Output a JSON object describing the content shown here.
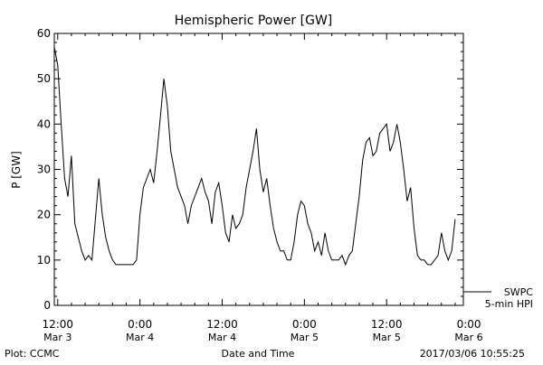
{
  "chart_data": {
    "type": "line",
    "title": "Hemispheric Power [GW]",
    "ylabel": "P [GW]",
    "xlabel": "Date and Time",
    "ylim": [
      0,
      60
    ],
    "y_ticks": [
      "0",
      "10",
      "20",
      "30",
      "40",
      "50",
      "60"
    ],
    "x_ticks": [
      {
        "time": "12:00",
        "date": "Mar 3"
      },
      {
        "time": "0:00",
        "date": "Mar 4"
      },
      {
        "time": "12:00",
        "date": "Mar 4"
      },
      {
        "time": "0:00",
        "date": "Mar 5"
      },
      {
        "time": "12:00",
        "date": "Mar 5"
      },
      {
        "time": "0:00",
        "date": "Mar 6"
      }
    ],
    "xlim_hours_from_first_tick": [
      -0.5,
      59.2
    ],
    "legend": {
      "label_1": "SWPC",
      "label_2": "5-min HPI",
      "placement": "right, outside"
    },
    "series": [
      {
        "points": [
          [
            -0.5,
            57
          ],
          [
            0,
            53
          ],
          [
            0.5,
            40
          ],
          [
            1,
            28
          ],
          [
            1.5,
            24
          ],
          [
            2,
            33
          ],
          [
            2.5,
            18
          ],
          [
            3,
            15
          ],
          [
            3.5,
            12
          ],
          [
            4,
            10
          ],
          [
            4.5,
            11
          ],
          [
            5,
            10
          ],
          [
            5.5,
            19
          ],
          [
            6,
            28
          ],
          [
            6.5,
            20
          ],
          [
            7,
            15
          ],
          [
            7.5,
            12
          ],
          [
            8,
            10
          ],
          [
            8.5,
            9
          ],
          [
            9,
            9
          ],
          [
            10,
            9
          ],
          [
            11,
            9
          ],
          [
            11.5,
            10
          ],
          [
            12,
            20
          ],
          [
            12.5,
            26
          ],
          [
            13,
            28
          ],
          [
            13.5,
            30
          ],
          [
            14,
            27
          ],
          [
            14.5,
            34
          ],
          [
            15,
            42
          ],
          [
            15.5,
            50
          ],
          [
            16,
            44
          ],
          [
            16.5,
            34
          ],
          [
            17,
            30
          ],
          [
            17.5,
            26
          ],
          [
            18,
            24
          ],
          [
            18.5,
            22
          ],
          [
            19,
            18
          ],
          [
            19.5,
            22
          ],
          [
            20,
            24
          ],
          [
            20.5,
            26
          ],
          [
            21,
            28
          ],
          [
            21.5,
            25
          ],
          [
            22,
            23
          ],
          [
            22.5,
            18
          ],
          [
            23,
            25
          ],
          [
            23.5,
            27
          ],
          [
            24,
            22
          ],
          [
            24.5,
            16
          ],
          [
            25,
            14
          ],
          [
            25.5,
            20
          ],
          [
            26,
            17
          ],
          [
            26.5,
            18
          ],
          [
            27,
            20
          ],
          [
            27.5,
            26
          ],
          [
            28,
            30
          ],
          [
            28.5,
            34
          ],
          [
            29,
            39
          ],
          [
            29.5,
            30
          ],
          [
            30,
            25
          ],
          [
            30.5,
            28
          ],
          [
            31,
            22
          ],
          [
            31.5,
            17
          ],
          [
            32,
            14
          ],
          [
            32.5,
            12
          ],
          [
            33,
            12
          ],
          [
            33.5,
            10
          ],
          [
            34,
            10
          ],
          [
            34.5,
            14
          ],
          [
            35,
            20
          ],
          [
            35.5,
            23
          ],
          [
            36,
            22
          ],
          [
            36.5,
            18
          ],
          [
            37,
            16
          ],
          [
            37.5,
            12
          ],
          [
            38,
            14
          ],
          [
            38.5,
            11
          ],
          [
            39,
            16
          ],
          [
            39.5,
            12
          ],
          [
            40,
            10
          ],
          [
            40.5,
            10
          ],
          [
            41,
            10
          ],
          [
            41.5,
            11
          ],
          [
            42,
            9
          ],
          [
            42.5,
            11
          ],
          [
            43,
            12
          ],
          [
            43.5,
            18
          ],
          [
            44,
            24
          ],
          [
            44.5,
            32
          ],
          [
            45,
            36
          ],
          [
            45.5,
            37
          ],
          [
            46,
            33
          ],
          [
            46.5,
            34
          ],
          [
            47,
            38
          ],
          [
            47.5,
            39
          ],
          [
            48,
            40
          ],
          [
            48.5,
            34
          ],
          [
            49,
            36
          ],
          [
            49.5,
            40
          ],
          [
            50,
            36
          ],
          [
            50.5,
            30
          ],
          [
            51,
            23
          ],
          [
            51.5,
            26
          ],
          [
            52,
            17
          ],
          [
            52.5,
            11
          ],
          [
            53,
            10
          ],
          [
            53.5,
            10
          ],
          [
            54,
            9
          ],
          [
            54.5,
            9
          ],
          [
            55,
            10
          ],
          [
            55.5,
            11
          ],
          [
            56,
            16
          ],
          [
            56.5,
            12
          ],
          [
            57,
            10
          ],
          [
            57.5,
            12
          ],
          [
            58,
            19
          ]
        ]
      }
    ]
  },
  "footer": {
    "credit": "Plot: CCMC",
    "timestamp": "2017/03/06 10:55:25"
  }
}
